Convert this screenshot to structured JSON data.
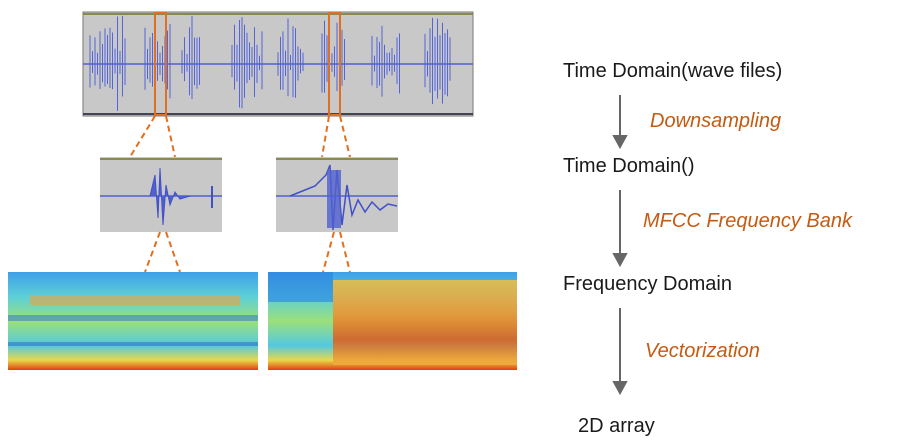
{
  "steps": [
    "Time Domain(wave files)",
    "Time Domain()",
    "Frequency Domain",
    "2D array"
  ],
  "transitions": [
    "Downsampling",
    "MFCC Frequency Bank",
    "Vectorization"
  ]
}
